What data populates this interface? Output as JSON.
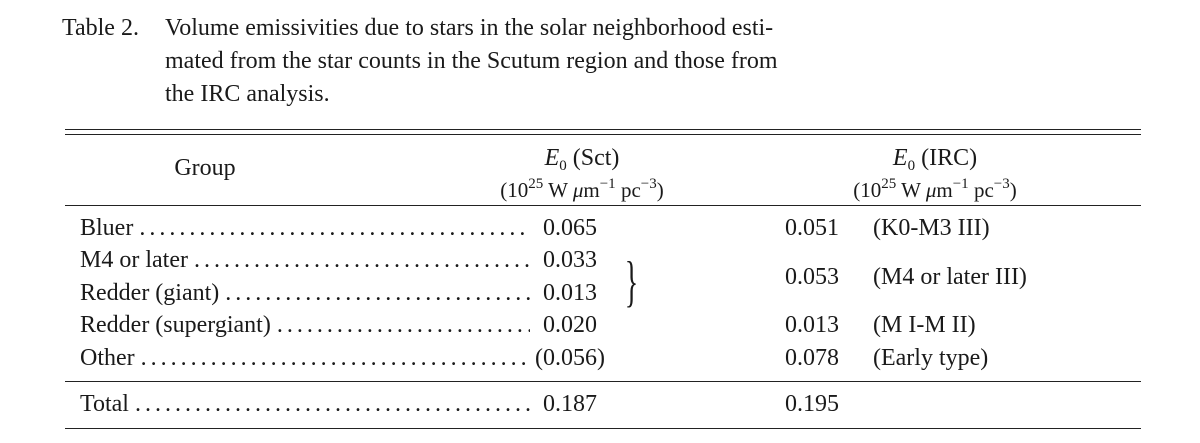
{
  "caption": {
    "label": "Table 2.",
    "lines": [
      "Volume emissivities due to stars in the solar neighborhood esti-",
      "mated from the star counts in the Scutum region and those from",
      "the IRC analysis."
    ]
  },
  "table": {
    "headers": [
      {
        "title": [
          {
            "text": "Group",
            "style": "plain"
          }
        ]
      },
      {
        "title": [
          {
            "text": "E",
            "style": "italic"
          },
          {
            "text": "0",
            "style": "sub"
          },
          {
            "text": " (Sct)",
            "style": "plain"
          }
        ],
        "unit": [
          {
            "text": "(10",
            "style": "plain"
          },
          {
            "text": "25",
            "style": "sup"
          },
          {
            "text": " W ",
            "style": "plain"
          },
          {
            "text": "μ",
            "style": "italic"
          },
          {
            "text": "m",
            "style": "plain"
          },
          {
            "text": "−1",
            "style": "sup"
          },
          {
            "text": " pc",
            "style": "plain"
          },
          {
            "text": "−3",
            "style": "sup"
          },
          {
            "text": ")",
            "style": "plain"
          }
        ]
      },
      {
        "title": [
          {
            "text": "E",
            "style": "italic"
          },
          {
            "text": "0",
            "style": "sub"
          },
          {
            "text": " (IRC)",
            "style": "plain"
          }
        ],
        "unit": [
          {
            "text": "(10",
            "style": "plain"
          },
          {
            "text": "25",
            "style": "sup"
          },
          {
            "text": " W ",
            "style": "plain"
          },
          {
            "text": "μ",
            "style": "italic"
          },
          {
            "text": "m",
            "style": "plain"
          },
          {
            "text": "−1",
            "style": "sup"
          },
          {
            "text": " pc",
            "style": "plain"
          },
          {
            "text": "−3",
            "style": "sup"
          },
          {
            "text": ")",
            "style": "plain"
          }
        ]
      }
    ],
    "rows": [
      {
        "group": "Bluer",
        "e0_sct": "0.065"
      },
      {
        "group": "M4 or later",
        "e0_sct": "0.033"
      },
      {
        "group": "Redder (giant)",
        "e0_sct": "0.013"
      },
      {
        "group": "Redder (supergiant)",
        "e0_sct": "0.020"
      },
      {
        "group": "Other",
        "e0_sct": "(0.056)"
      }
    ],
    "irc": [
      {
        "value": "0.051",
        "type": "(K0-M3 III)",
        "span": 1
      },
      {
        "value": "0.053",
        "type": "(M4 or later III)",
        "span": 2
      },
      {
        "value": "0.013",
        "type": "(M I-M II)",
        "span": 1
      },
      {
        "value": "0.078",
        "type": "(Early type)",
        "span": 1
      }
    ],
    "total": {
      "group": "Total",
      "e0_sct": "0.187",
      "e0_irc": "0.195"
    }
  }
}
